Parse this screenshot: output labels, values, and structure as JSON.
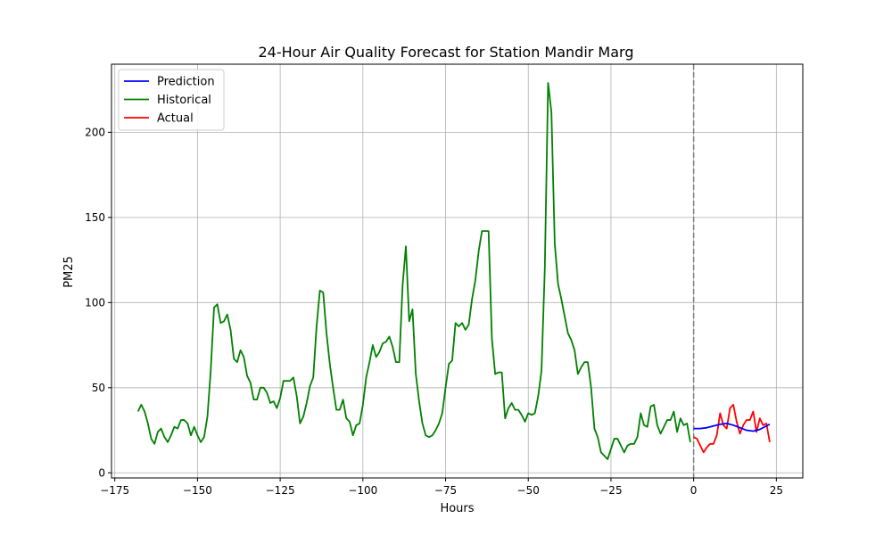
{
  "chart_data": {
    "type": "line",
    "title": "24-Hour Air Quality Forecast for Station Mandir Marg",
    "xlabel": "Hours",
    "ylabel": "PM25",
    "xlim": [
      -176,
      33
    ],
    "ylim": [
      -3,
      240
    ],
    "xticks": [
      -175,
      -150,
      -125,
      -100,
      -75,
      -50,
      -25,
      0,
      25
    ],
    "yticks": [
      0,
      50,
      100,
      150,
      200
    ],
    "grid": true,
    "legend_position": "upper-left",
    "vline": {
      "x": 0,
      "color": "#808080",
      "style": "dashed"
    },
    "series": [
      {
        "name": "Prediction",
        "color": "#0000ff",
        "x": [
          0,
          2,
          4,
          6,
          8,
          10,
          12,
          14,
          16,
          18,
          20,
          22,
          23
        ],
        "y": [
          26,
          26,
          26.5,
          27.5,
          28.5,
          29,
          28,
          26.5,
          25,
          24.5,
          25.5,
          27.5,
          28.5
        ]
      },
      {
        "name": "Historical",
        "color": "#008000",
        "x": [
          -168,
          -167,
          -166,
          -165,
          -164,
          -163,
          -162,
          -161,
          -160,
          -159,
          -158,
          -157,
          -156,
          -155,
          -154,
          -153,
          -152,
          -151,
          -150,
          -149,
          -148,
          -147,
          -146,
          -145,
          -144,
          -143,
          -142,
          -141,
          -140,
          -139,
          -138,
          -137,
          -136,
          -135,
          -134,
          -133,
          -132,
          -131,
          -130,
          -129,
          -128,
          -127,
          -126,
          -125,
          -124,
          -123,
          -122,
          -121,
          -120,
          -119,
          -118,
          -117,
          -116,
          -115,
          -114,
          -113,
          -112,
          -111,
          -110,
          -109,
          -108,
          -107,
          -106,
          -105,
          -104,
          -103,
          -102,
          -101,
          -100,
          -99,
          -98,
          -97,
          -96,
          -95,
          -94,
          -93,
          -92,
          -91,
          -90,
          -89,
          -88,
          -87,
          -86,
          -85,
          -84,
          -83,
          -82,
          -81,
          -80,
          -79,
          -78,
          -77,
          -76,
          -75,
          -74,
          -73,
          -72,
          -71,
          -70,
          -69,
          -68,
          -67,
          -66,
          -65,
          -64,
          -63,
          -62,
          -61,
          -60,
          -59,
          -58,
          -57,
          -56,
          -55,
          -54,
          -53,
          -52,
          -51,
          -50,
          -49,
          -48,
          -47,
          -46,
          -45,
          -44,
          -43,
          -42,
          -41,
          -40,
          -39,
          -38,
          -37,
          -36,
          -35,
          -34,
          -33,
          -32,
          -31,
          -30,
          -29,
          -28,
          -27,
          -26,
          -25,
          -24,
          -23,
          -22,
          -21,
          -20,
          -19,
          -18,
          -17,
          -16,
          -15,
          -14,
          -13,
          -12,
          -11,
          -10,
          -9,
          -8,
          -7,
          -6,
          -5,
          -4,
          -3,
          -2,
          -1
        ],
        "y": [
          36,
          40,
          36,
          29,
          20,
          17,
          24,
          26,
          21,
          18,
          22,
          27,
          26,
          31,
          31,
          29,
          22,
          27,
          22,
          18,
          21,
          33,
          60,
          97,
          99,
          88,
          89,
          93,
          84,
          67,
          65,
          72,
          68,
          57,
          53,
          43,
          43,
          50,
          50,
          47,
          41,
          42,
          38,
          44,
          54,
          54,
          54,
          56,
          45,
          29,
          33,
          41,
          51,
          56,
          86,
          107,
          106,
          82,
          64,
          50,
          37,
          37,
          43,
          32,
          30,
          22,
          28,
          29,
          40,
          56,
          65,
          75,
          68,
          71,
          76,
          77,
          80,
          74,
          65,
          65,
          110,
          133,
          89,
          96,
          58,
          42,
          29,
          22,
          21,
          22,
          25,
          29,
          35,
          50,
          64,
          66,
          88,
          86,
          88,
          84,
          87,
          102,
          113,
          130,
          142,
          142,
          142,
          79,
          58,
          59,
          59,
          32,
          38,
          41,
          37,
          37,
          34,
          30,
          35,
          34,
          35,
          45,
          60,
          120,
          229,
          212,
          135,
          111,
          102,
          92,
          82,
          78,
          72,
          58,
          62,
          65,
          65,
          50,
          26,
          21,
          12,
          10,
          8,
          14,
          20,
          20,
          16,
          12,
          16,
          17,
          17,
          21,
          35,
          28,
          27,
          39,
          40,
          28,
          23,
          27,
          31,
          31,
          36,
          24,
          32,
          28,
          29,
          18
        ]
      },
      {
        "name": "Actual",
        "color": "#ff0000",
        "x": [
          0,
          1,
          2,
          3,
          4,
          5,
          6,
          7,
          8,
          9,
          10,
          11,
          12,
          13,
          14,
          15,
          16,
          17,
          18,
          19,
          20,
          21,
          22,
          23
        ],
        "y": [
          21,
          20,
          16,
          12,
          15,
          17,
          17,
          22,
          35,
          28,
          26,
          38,
          40,
          30,
          23,
          28,
          31,
          31,
          36,
          24,
          32,
          28,
          29,
          18
        ]
      }
    ]
  }
}
